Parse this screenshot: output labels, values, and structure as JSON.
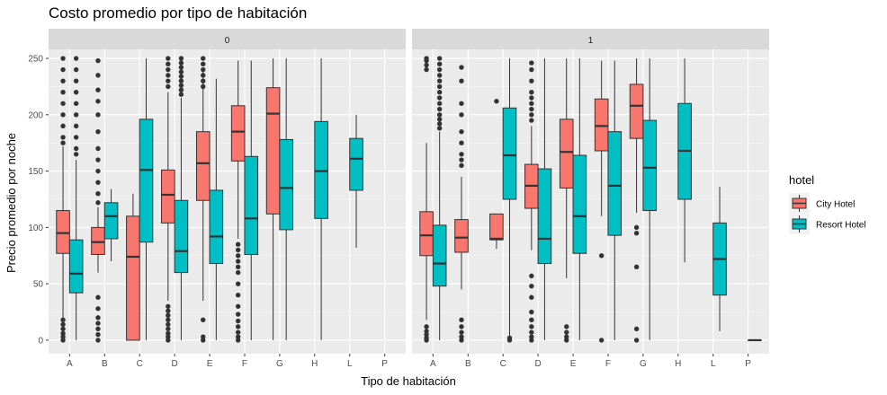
{
  "chart_data": {
    "type": "boxplot",
    "title": "Costo promedio por tipo de habitación",
    "xlabel": "Tipo de habitación",
    "ylabel": "Precio promedio por noche",
    "ylim": [
      -12,
      258
    ],
    "yticks": [
      0,
      50,
      100,
      150,
      200,
      250
    ],
    "categories": [
      "A",
      "B",
      "C",
      "D",
      "E",
      "F",
      "G",
      "H",
      "L",
      "P"
    ],
    "grid": true,
    "legend": {
      "title": "hotel",
      "position": "right",
      "entries": [
        {
          "name": "City Hotel",
          "color": "#F8766D"
        },
        {
          "name": "Resort Hotel",
          "color": "#00BFC4"
        }
      ]
    },
    "facets": [
      {
        "label": "0",
        "boxes": [
          {
            "category": "A",
            "hotel": "City Hotel",
            "lower_whisker": 0,
            "q1": 77,
            "median": 95,
            "q3": 115,
            "upper_whisker": 172,
            "outliers": [
              0,
              3,
              6,
              10,
              14,
              18,
              175,
              180,
              190,
              200,
              210,
              220,
              230,
              240,
              250
            ]
          },
          {
            "category": "A",
            "hotel": "Resort Hotel",
            "lower_whisker": 0,
            "q1": 42,
            "median": 59,
            "q3": 89,
            "upper_whisker": 160,
            "outliers": [
              165,
              170,
              180,
              190,
              200,
              210,
              220,
              230,
              240,
              250
            ]
          },
          {
            "category": "B",
            "hotel": "City Hotel",
            "lower_whisker": 60,
            "q1": 76,
            "median": 87,
            "q3": 100,
            "upper_whisker": 118,
            "outliers": [
              0,
              5,
              10,
              15,
              20,
              28,
              38,
              122,
              130,
              140,
              150,
              160,
              170,
              185,
              200,
              212,
              222,
              235,
              248
            ]
          },
          {
            "category": "B",
            "hotel": "Resort Hotel",
            "lower_whisker": 70,
            "q1": 90,
            "median": 110,
            "q3": 122,
            "upper_whisker": 134,
            "outliers": []
          },
          {
            "category": "C",
            "hotel": "City Hotel",
            "lower_whisker": 0,
            "q1": 0,
            "median": 74,
            "q3": 110,
            "upper_whisker": 130,
            "outliers": []
          },
          {
            "category": "C",
            "hotel": "Resort Hotel",
            "lower_whisker": 0,
            "q1": 87,
            "median": 151,
            "q3": 196,
            "upper_whisker": 250,
            "outliers": []
          },
          {
            "category": "D",
            "hotel": "City Hotel",
            "lower_whisker": 35,
            "q1": 104,
            "median": 129,
            "q3": 151,
            "upper_whisker": 220,
            "outliers": [
              0,
              3,
              6,
              10,
              14,
              18,
              22,
              26,
              30,
              225,
              230,
              235,
              240,
              245,
              250
            ]
          },
          {
            "category": "D",
            "hotel": "Resort Hotel",
            "lower_whisker": 0,
            "q1": 60,
            "median": 79,
            "q3": 124,
            "upper_whisker": 215,
            "outliers": [
              218,
              222,
              226,
              230,
              234,
              238,
              242,
              246,
              250
            ]
          },
          {
            "category": "E",
            "hotel": "City Hotel",
            "lower_whisker": 35,
            "q1": 124,
            "median": 157,
            "q3": 185,
            "upper_whisker": 240,
            "outliers": [
              0,
              3,
              18,
              225,
              230,
              235,
              240,
              245,
              250
            ]
          },
          {
            "category": "E",
            "hotel": "Resort Hotel",
            "lower_whisker": 0,
            "q1": 68,
            "median": 92,
            "q3": 133,
            "upper_whisker": 232,
            "outliers": []
          },
          {
            "category": "F",
            "hotel": "City Hotel",
            "lower_whisker": 90,
            "q1": 159,
            "median": 185,
            "q3": 208,
            "upper_whisker": 248,
            "outliers": [
              0,
              3,
              7,
              12,
              17,
              23,
              30,
              40,
              50,
              60,
              65,
              70,
              75,
              80,
              85
            ]
          },
          {
            "category": "F",
            "hotel": "Resort Hotel",
            "lower_whisker": 0,
            "q1": 76,
            "median": 108,
            "q3": 163,
            "upper_whisker": 248,
            "outliers": []
          },
          {
            "category": "G",
            "hotel": "City Hotel",
            "lower_whisker": 0,
            "q1": 112,
            "median": 201,
            "q3": 224,
            "upper_whisker": 250,
            "outliers": []
          },
          {
            "category": "G",
            "hotel": "Resort Hotel",
            "lower_whisker": 0,
            "q1": 98,
            "median": 135,
            "q3": 178,
            "upper_whisker": 250,
            "outliers": []
          },
          {
            "category": "H",
            "hotel": "Resort Hotel",
            "lower_whisker": 0,
            "q1": 108,
            "median": 150,
            "q3": 194,
            "upper_whisker": 250,
            "outliers": []
          },
          {
            "category": "L",
            "hotel": "Resort Hotel",
            "lower_whisker": 82,
            "q1": 133,
            "median": 161,
            "q3": 179,
            "upper_whisker": 200,
            "outliers": []
          }
        ]
      },
      {
        "label": "1",
        "boxes": [
          {
            "category": "A",
            "hotel": "City Hotel",
            "lower_whisker": 18,
            "q1": 75,
            "median": 93,
            "q3": 114,
            "upper_whisker": 175,
            "outliers": [
              0,
              2,
              5,
              8,
              12,
              240,
              244,
              248,
              250
            ]
          },
          {
            "category": "A",
            "hotel": "Resort Hotel",
            "lower_whisker": 0,
            "q1": 48,
            "median": 68,
            "q3": 102,
            "upper_whisker": 185,
            "outliers": [
              188,
              192,
              196,
              200,
              205,
              210,
              215,
              220,
              225,
              230,
              235,
              240,
              245,
              250
            ]
          },
          {
            "category": "B",
            "hotel": "City Hotel",
            "lower_whisker": 45,
            "q1": 78,
            "median": 91,
            "q3": 107,
            "upper_whisker": 145,
            "outliers": [
              0,
              3,
              7,
              12,
              18,
              155,
              160,
              165,
              175,
              185,
              200,
              210,
              230,
              242
            ]
          },
          {
            "category": "C",
            "hotel": "City Hotel",
            "lower_whisker": 81,
            "q1": 89,
            "median": 90,
            "q3": 112,
            "upper_whisker": 112,
            "outliers": [
              212
            ]
          },
          {
            "category": "C",
            "hotel": "Resort Hotel",
            "lower_whisker": 0,
            "q1": 125,
            "median": 164,
            "q3": 206,
            "upper_whisker": 250,
            "outliers": [
              0,
              2
            ]
          },
          {
            "category": "D",
            "hotel": "City Hotel",
            "lower_whisker": 80,
            "q1": 117,
            "median": 137,
            "q3": 156,
            "upper_whisker": 190,
            "outliers": [
              0,
              3,
              7,
              12,
              18,
              25,
              38,
              48,
              57,
              195,
              200,
              205,
              210,
              215,
              220,
              230,
              240,
              246
            ]
          },
          {
            "category": "D",
            "hotel": "Resort Hotel",
            "lower_whisker": 0,
            "q1": 68,
            "median": 90,
            "q3": 152,
            "upper_whisker": 250,
            "outliers": []
          },
          {
            "category": "E",
            "hotel": "City Hotel",
            "lower_whisker": 55,
            "q1": 135,
            "median": 167,
            "q3": 196,
            "upper_whisker": 250,
            "outliers": [
              0,
              3,
              7,
              12
            ]
          },
          {
            "category": "E",
            "hotel": "Resort Hotel",
            "lower_whisker": 0,
            "q1": 77,
            "median": 110,
            "q3": 164,
            "upper_whisker": 250,
            "outliers": []
          },
          {
            "category": "F",
            "hotel": "City Hotel",
            "lower_whisker": 110,
            "q1": 168,
            "median": 190,
            "q3": 214,
            "upper_whisker": 248,
            "outliers": [
              0,
              75
            ]
          },
          {
            "category": "F",
            "hotel": "Resort Hotel",
            "lower_whisker": 0,
            "q1": 93,
            "median": 137,
            "q3": 185,
            "upper_whisker": 248,
            "outliers": []
          },
          {
            "category": "G",
            "hotel": "City Hotel",
            "lower_whisker": 113,
            "q1": 179,
            "median": 208,
            "q3": 227,
            "upper_whisker": 250,
            "outliers": [
              0,
              10,
              65,
              95,
              100
            ]
          },
          {
            "category": "G",
            "hotel": "Resort Hotel",
            "lower_whisker": 0,
            "q1": 115,
            "median": 153,
            "q3": 195,
            "upper_whisker": 250,
            "outliers": []
          },
          {
            "category": "H",
            "hotel": "Resort Hotel",
            "lower_whisker": 69,
            "q1": 125,
            "median": 168,
            "q3": 210,
            "upper_whisker": 250,
            "outliers": []
          },
          {
            "category": "L",
            "hotel": "Resort Hotel",
            "lower_whisker": 8,
            "q1": 40,
            "median": 72,
            "q3": 104,
            "upper_whisker": 136,
            "outliers": []
          },
          {
            "category": "P",
            "hotel": "Resort Hotel",
            "lower_whisker": 0,
            "q1": 0,
            "median": 0,
            "q3": 0,
            "upper_whisker": 0,
            "outliers": []
          }
        ]
      }
    ]
  }
}
